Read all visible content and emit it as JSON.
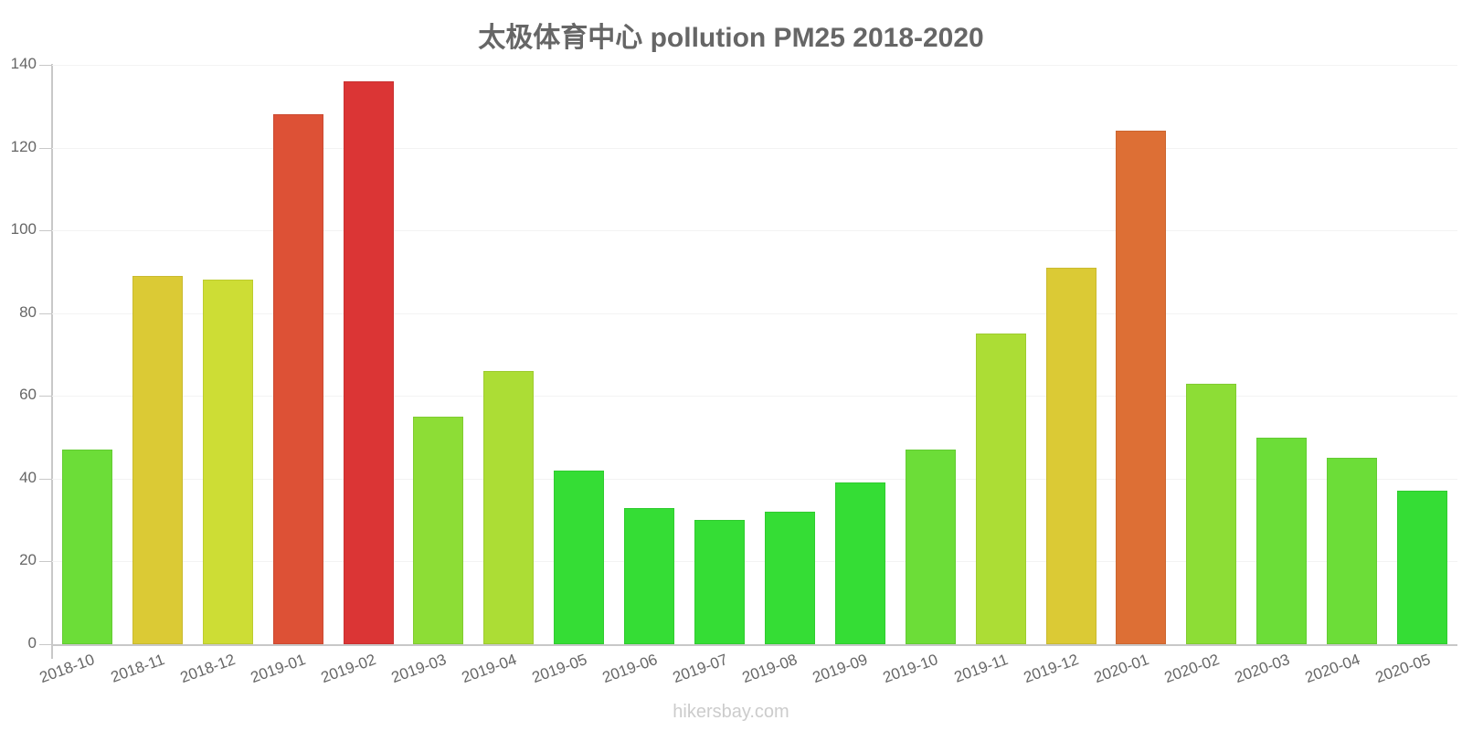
{
  "chart_data": {
    "type": "bar",
    "title": "太极体育中心 pollution PM25 2018-2020",
    "xlabel": "",
    "ylabel": "",
    "ylim": [
      0,
      140
    ],
    "yticks": [
      0,
      20,
      40,
      60,
      80,
      100,
      120,
      140
    ],
    "grid": true,
    "legend": "none",
    "categories": [
      "2018-10",
      "2018-11",
      "2018-12",
      "2019-01",
      "2019-02",
      "2019-03",
      "2019-04",
      "2019-05",
      "2019-06",
      "2019-07",
      "2019-08",
      "2019-09",
      "2019-10",
      "2019-11",
      "2019-12",
      "2020-01",
      "2020-02",
      "2020-03",
      "2020-04",
      "2020-05"
    ],
    "values": [
      47,
      89,
      88,
      128,
      136,
      55,
      66,
      42,
      33,
      30,
      32,
      39,
      47,
      75,
      91,
      124,
      63,
      50,
      45,
      37
    ],
    "colors": [
      "#6cdd38",
      "#dbca35",
      "#cddd35",
      "#dd5136",
      "#db3535",
      "#8ddd36",
      "#acdd35",
      "#35dd35",
      "#35dd35",
      "#35dd35",
      "#35dd35",
      "#35dd35",
      "#6cdd38",
      "#acdd35",
      "#dbca35",
      "#dd6f35",
      "#8ddd36",
      "#6cdd38",
      "#6cdd38",
      "#35dd35"
    ]
  },
  "footer": "hikersbay.com"
}
